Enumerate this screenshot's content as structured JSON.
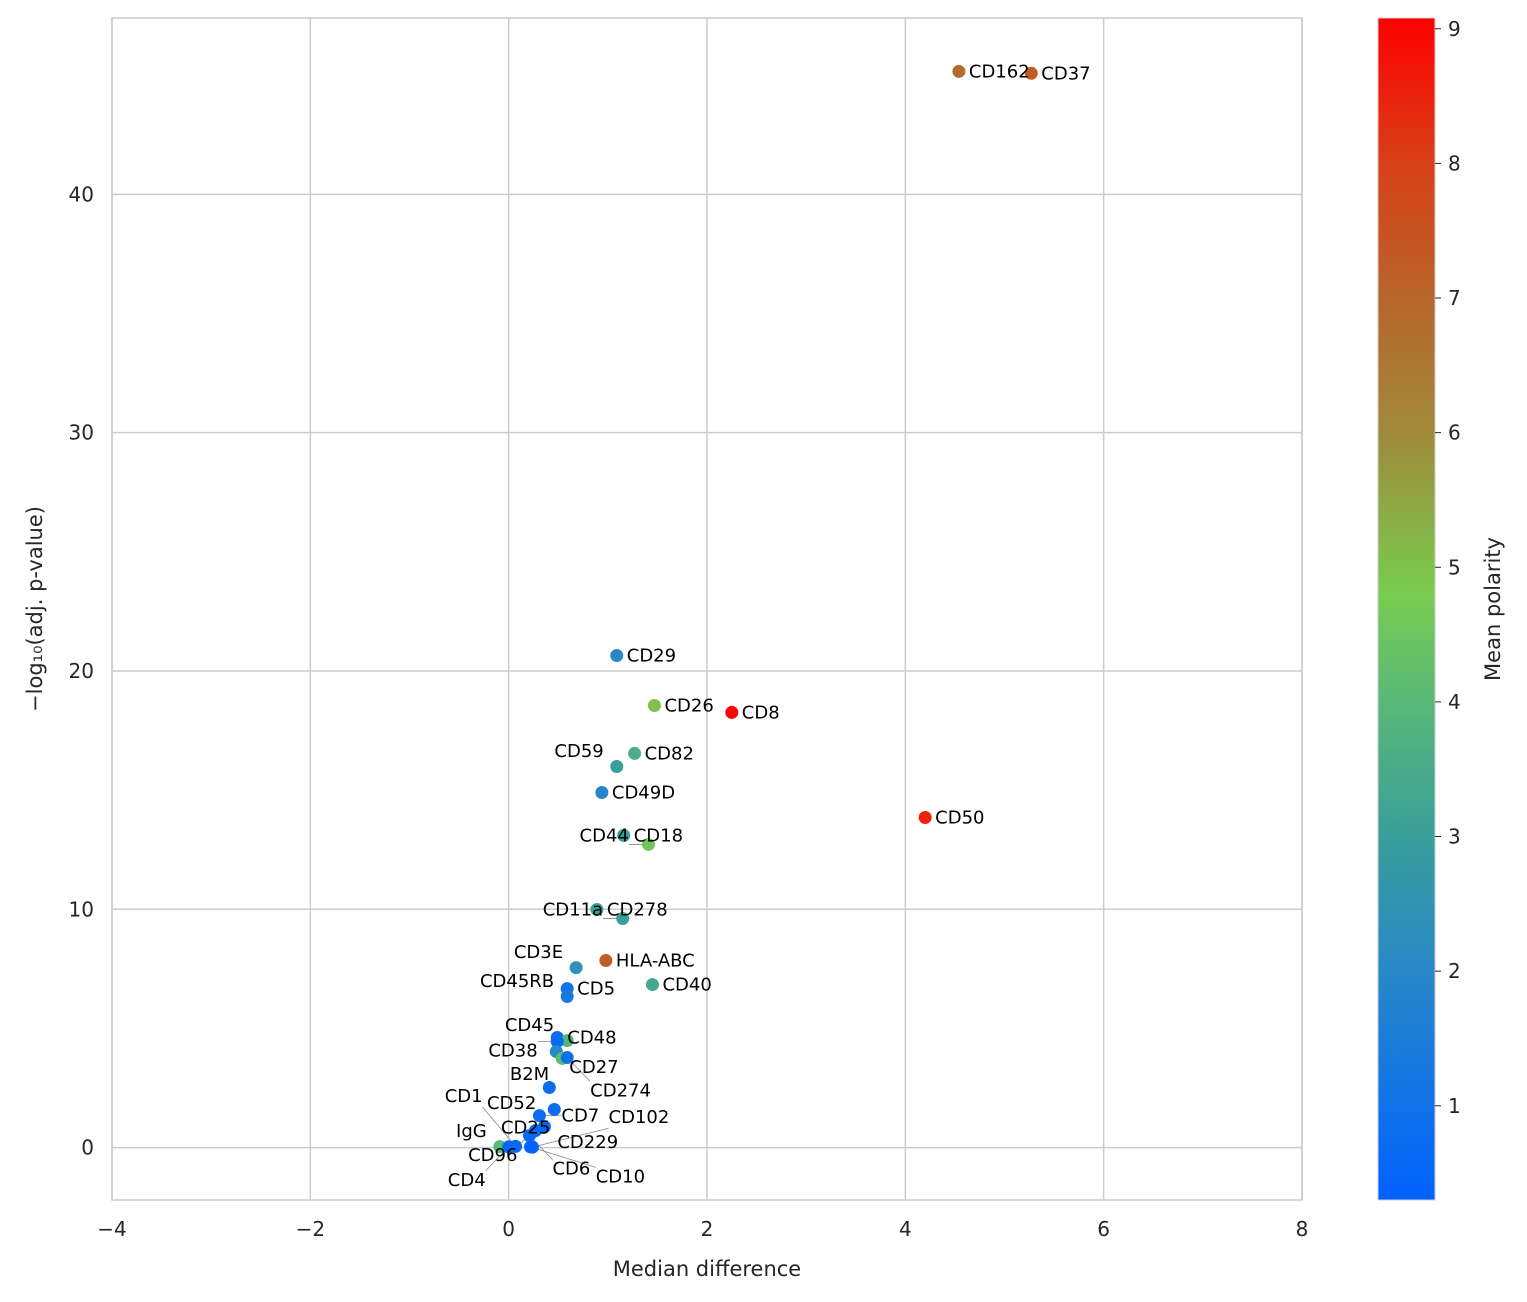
{
  "chart_data": {
    "type": "scatter",
    "title": "",
    "xlabel": "Median difference",
    "ylabel": "−log₁₀(adj. p-value)",
    "xlim": [
      -4,
      8
    ],
    "ylim": [
      -2.2,
      47.4
    ],
    "xticks": [
      -4,
      -2,
      0,
      2,
      4,
      6,
      8
    ],
    "yticks": [
      0,
      10,
      20,
      30,
      40
    ],
    "grid": true,
    "colorbar": {
      "label": "Mean polarity",
      "range": [
        0.3,
        9.08
      ],
      "ticks": [
        1,
        2,
        3,
        4,
        5,
        6,
        7,
        8,
        9
      ],
      "colormap": [
        [
          0.3,
          "#0062ff"
        ],
        [
          2,
          "#2888c8"
        ],
        [
          3,
          "#3a9e9a"
        ],
        [
          4,
          "#58b878"
        ],
        [
          4.8,
          "#78cc50"
        ],
        [
          6,
          "#a08a3a"
        ],
        [
          7,
          "#b8652a"
        ],
        [
          8,
          "#d84018"
        ],
        [
          9.08,
          "#ff0000"
        ]
      ]
    },
    "points": [
      {
        "label": "CD162",
        "x": 4.54,
        "y": 45.16,
        "c": 6.8
      },
      {
        "label": "CD37",
        "x": 5.27,
        "y": 45.08,
        "c": 7.3
      },
      {
        "label": "CD29",
        "x": 1.09,
        "y": 20.65,
        "c": 2.0
      },
      {
        "label": "CD26",
        "x": 1.47,
        "y": 18.55,
        "c": 5.0
      },
      {
        "label": "CD8",
        "x": 2.25,
        "y": 18.26,
        "c": 9.0
      },
      {
        "label": "CD82",
        "x": 1.27,
        "y": 16.54,
        "c": 3.6
      },
      {
        "label": "CD59",
        "x": 1.09,
        "y": 15.99,
        "c": 3.0
      },
      {
        "label": "CD49D",
        "x": 0.94,
        "y": 14.9,
        "c": 1.9
      },
      {
        "label": "CD50",
        "x": 4.2,
        "y": 13.85,
        "c": 8.5
      },
      {
        "label": "CD18",
        "x": 1.16,
        "y": 13.1,
        "c": 3.0
      },
      {
        "label": "CD44",
        "x": 1.41,
        "y": 12.72,
        "c": 4.6
      },
      {
        "label": "CD278",
        "x": 0.89,
        "y": 9.99,
        "c": 3.0
      },
      {
        "label": "CD11a",
        "x": 1.15,
        "y": 9.61,
        "c": 3.0
      },
      {
        "label": "HLA-ABC",
        "x": 0.98,
        "y": 7.85,
        "c": 7.2
      },
      {
        "label": "CD3E",
        "x": 0.68,
        "y": 7.55,
        "c": 2.4
      },
      {
        "label": "CD40",
        "x": 1.45,
        "y": 6.84,
        "c": 3.3
      },
      {
        "label": "CD5",
        "x": 0.59,
        "y": 6.67,
        "c": 1.0
      },
      {
        "label": "CD45RB",
        "x": 0.59,
        "y": 6.34,
        "c": 1.3
      },
      {
        "label": "CD48",
        "x": 0.49,
        "y": 4.62,
        "c": 0.8
      },
      {
        "label": "CD45",
        "x": 0.59,
        "y": 4.49,
        "c": 3.8
      },
      {
        "label": "CD38",
        "x": 0.49,
        "y": 4.45,
        "c": 0.7
      },
      {
        "label": "CD27",
        "x": 0.48,
        "y": 4.03,
        "c": 2.0
      },
      {
        "label": "B2M",
        "x": 0.54,
        "y": 3.74,
        "c": 4.2
      },
      {
        "label": "CD274",
        "x": 0.59,
        "y": 3.78,
        "c": 1.0
      },
      {
        "label": "CD52",
        "x": 0.41,
        "y": 2.52,
        "c": 0.8
      },
      {
        "label": "CD25",
        "x": 0.46,
        "y": 1.6,
        "c": 0.8
      },
      {
        "label": "CD7",
        "x": 0.31,
        "y": 1.34,
        "c": 0.8
      },
      {
        "label": "CD229",
        "x": 0.36,
        "y": 0.88,
        "c": 0.5
      },
      {
        "label": "CD96",
        "x": 0.27,
        "y": 0.71,
        "c": 0.6
      },
      {
        "label": "CD6",
        "x": 0.21,
        "y": 0.5,
        "c": 0.6
      },
      {
        "label": "IgG",
        "x": -0.09,
        "y": 0.04,
        "c": 4.0
      },
      {
        "label": "CD4",
        "x": 0.0,
        "y": 0.03,
        "c": 0.5
      },
      {
        "label": "CD1",
        "x": 0.07,
        "y": 0.05,
        "c": 0.6
      },
      {
        "label": "CD10",
        "x": 0.22,
        "y": 0.03,
        "c": 0.5
      },
      {
        "label": "CD102",
        "x": 0.24,
        "y": 0.02,
        "c": 0.4
      }
    ]
  }
}
